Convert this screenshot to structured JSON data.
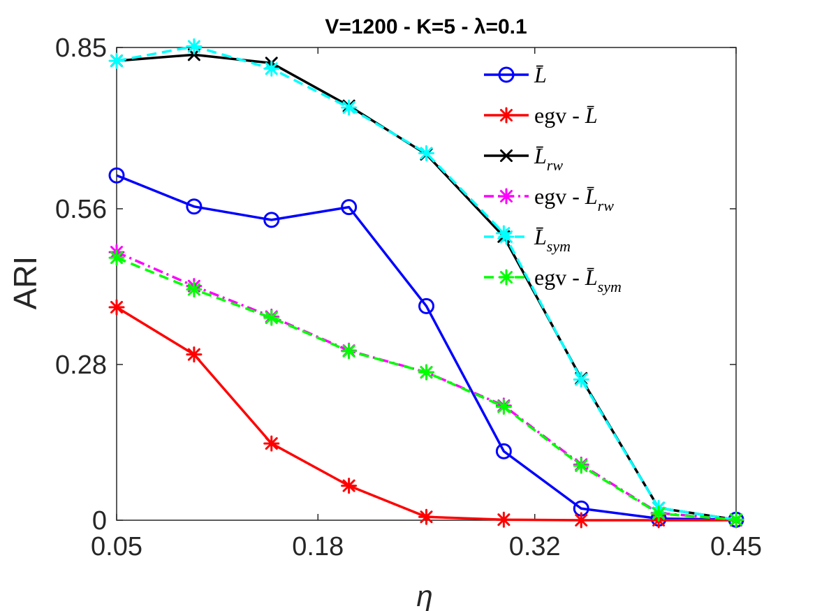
{
  "chart_data": {
    "type": "line",
    "title": "V=1200 - K=5 - λ=0.1",
    "xlabel": "η",
    "ylabel": "ARI",
    "x": [
      0.05,
      0.1,
      0.15,
      0.2,
      0.25,
      0.3,
      0.35,
      0.4,
      0.45
    ],
    "xlim": [
      0.05,
      0.45
    ],
    "ylim": [
      0,
      0.85
    ],
    "xticks": [
      0.05,
      0.18,
      0.32,
      0.45
    ],
    "xtick_labels": [
      "0.05",
      "0.18",
      "0.32",
      "0.45"
    ],
    "yticks": [
      0,
      0.28,
      0.56,
      0.85
    ],
    "ytick_labels": [
      "0",
      "0.28",
      "0.56",
      "0.85"
    ],
    "legend_position": "top-right",
    "series": [
      {
        "name": "L̄",
        "base": "L̄",
        "sub": "",
        "prefix": "",
        "color": "#0000ff",
        "dash": "solid",
        "marker": "circle",
        "values": [
          0.62,
          0.564,
          0.54,
          0.563,
          0.385,
          0.124,
          0.021,
          0.003,
          0.001
        ]
      },
      {
        "name": "egv - L̄",
        "base": "L̄",
        "sub": "",
        "prefix": "egv - ",
        "color": "#ff0000",
        "dash": "solid",
        "marker": "star",
        "values": [
          0.383,
          0.298,
          0.138,
          0.062,
          0.006,
          0.001,
          0.0,
          0.0,
          0.0
        ]
      },
      {
        "name": "L̄rw",
        "base": "L̄",
        "sub": "rw",
        "prefix": "",
        "color": "#000000",
        "dash": "solid",
        "marker": "cross",
        "values": [
          0.826,
          0.837,
          0.822,
          0.745,
          0.658,
          0.51,
          0.255,
          0.022,
          0.001
        ]
      },
      {
        "name": "egv - L̄rw",
        "base": "L̄",
        "sub": "rw",
        "prefix": "egv - ",
        "color": "#ff00ff",
        "dash": "dashdot",
        "marker": "star",
        "values": [
          0.482,
          0.421,
          0.366,
          0.305,
          0.266,
          0.206,
          0.1,
          0.013,
          0.001
        ]
      },
      {
        "name": "L̄sym",
        "base": "L̄",
        "sub": "sym",
        "prefix": "",
        "color": "#00ffff",
        "dash": "dashed",
        "marker": "star",
        "values": [
          0.826,
          0.852,
          0.812,
          0.742,
          0.66,
          0.516,
          0.253,
          0.022,
          0.001
        ]
      },
      {
        "name": "egv - L̄sym",
        "base": "L̄",
        "sub": "sym",
        "prefix": "egv - ",
        "color": "#00ff00",
        "dash": "dashed",
        "marker": "star",
        "values": [
          0.472,
          0.415,
          0.364,
          0.304,
          0.266,
          0.204,
          0.098,
          0.012,
          0.001
        ]
      }
    ]
  }
}
